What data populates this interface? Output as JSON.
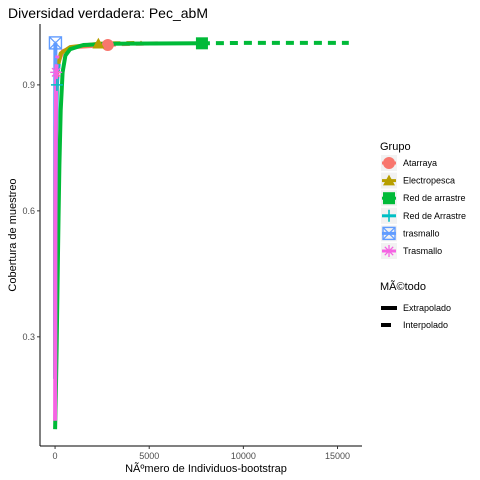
{
  "chart_data": {
    "type": "line",
    "title": "Diversidad verdadera: Pec_abM",
    "xlabel": "NÃºmero de Individuos-bootstrap",
    "ylabel": "Cobertura de muestreo",
    "xlim": [
      -800,
      16300
    ],
    "ylim": [
      0.04,
      1.045
    ],
    "xticks": [
      0,
      5000,
      10000,
      15000
    ],
    "xtick_labels": [
      "0",
      "5000",
      "10000",
      "15000"
    ],
    "yticks": [
      0.3,
      0.6,
      0.9
    ],
    "ytick_labels": [
      "0.3",
      "0.6",
      "0.9"
    ],
    "grid": false,
    "legend_position": "right",
    "legend_group_title": "Grupo",
    "legend_method_title": "MÃ©todo",
    "series": [
      {
        "name": "Atarraya",
        "color": "#f8766d",
        "marker": "circle",
        "observed": [
          2800,
          0.995
        ],
        "interpolated": [
          [
            1,
            0.2
          ],
          [
            20,
            0.7
          ],
          [
            60,
            0.88
          ],
          [
            150,
            0.95
          ],
          [
            400,
            0.98
          ],
          [
            1000,
            0.99
          ],
          [
            2800,
            0.995
          ]
        ],
        "extrapolated": [
          [
            2800,
            0.995
          ],
          [
            3500,
            0.997
          ],
          [
            4500,
            0.998
          ],
          [
            5600,
            0.999
          ]
        ]
      },
      {
        "name": "Electropesca",
        "color": "#b79f00",
        "marker": "triangle",
        "observed": [
          2300,
          0.998
        ],
        "interpolated": [
          [
            1,
            0.3
          ],
          [
            20,
            0.8
          ],
          [
            80,
            0.93
          ],
          [
            300,
            0.975
          ],
          [
            800,
            0.99
          ],
          [
            2300,
            0.998
          ]
        ],
        "extrapolated": [
          [
            2300,
            0.998
          ],
          [
            3200,
            0.999
          ],
          [
            4600,
            1.0
          ]
        ]
      },
      {
        "name": "Red de arrastre",
        "color": "#00ba38",
        "marker": "square",
        "observed": [
          7800,
          0.999
        ],
        "interpolated": [
          [
            1,
            0.08
          ],
          [
            40,
            0.16
          ],
          [
            80,
            0.27
          ],
          [
            130,
            0.42
          ],
          [
            180,
            0.58
          ],
          [
            230,
            0.71
          ],
          [
            300,
            0.84
          ],
          [
            400,
            0.93
          ],
          [
            550,
            0.97
          ],
          [
            800,
            0.985
          ],
          [
            1500,
            0.995
          ],
          [
            3000,
            0.998
          ],
          [
            7800,
            0.999
          ]
        ],
        "extrapolated": [
          [
            7800,
            0.999
          ],
          [
            10000,
            1.0
          ],
          [
            13000,
            1.0
          ],
          [
            15600,
            1.0
          ]
        ]
      },
      {
        "name": "Red de Arrastre",
        "color": "#00bfc4",
        "marker": "plus",
        "observed": [
          100,
          0.9
        ],
        "interpolated": [
          [
            1,
            0.2
          ],
          [
            20,
            0.5
          ],
          [
            50,
            0.78
          ],
          [
            100,
            0.9
          ]
        ],
        "extrapolated": [
          [
            100,
            0.9
          ],
          [
            140,
            0.93
          ],
          [
            200,
            0.95
          ]
        ]
      },
      {
        "name": "trasmallo",
        "color": "#619cff",
        "marker": "square-x",
        "observed": [
          20,
          1.0
        ],
        "interpolated": [
          [
            1,
            0.3
          ],
          [
            8,
            0.85
          ],
          [
            20,
            1.0
          ]
        ],
        "extrapolated": [
          [
            20,
            1.0
          ],
          [
            40,
            1.0
          ]
        ]
      },
      {
        "name": "Trasmallo",
        "color": "#f564e3",
        "marker": "asterisk",
        "observed": [
          60,
          0.93
        ],
        "interpolated": [
          [
            1,
            0.1
          ],
          [
            10,
            0.3
          ],
          [
            20,
            0.55
          ],
          [
            35,
            0.75
          ],
          [
            60,
            0.93
          ]
        ],
        "extrapolated": [
          [
            60,
            0.93
          ],
          [
            100,
            0.96
          ],
          [
            130,
            0.97
          ]
        ]
      }
    ],
    "methods": [
      {
        "name": "Extrapolado",
        "style": "dashed"
      },
      {
        "name": "Interpolado",
        "style": "solid"
      }
    ]
  }
}
